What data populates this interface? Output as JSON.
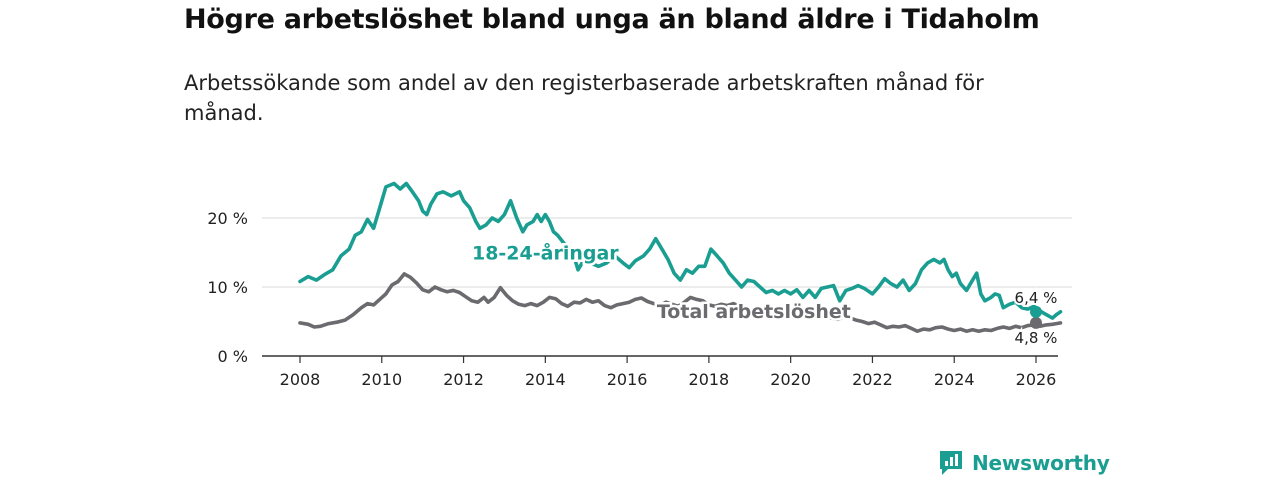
{
  "title": "Högre arbetslöshet bland unga än bland äldre i Tidaholm",
  "subtitle": "Arbetssökande som andel av den registerbaserade arbetskraften månad för månad.",
  "brand": {
    "name": "Newsworthy",
    "icon": "newsworthy-logo-icon",
    "color": "#1a9e92"
  },
  "chart_data": {
    "type": "line",
    "xlabel": "",
    "ylabel": "",
    "xlim": [
      2007.4,
      2026.6
    ],
    "ylim": [
      0,
      25
    ],
    "x_ticks": [
      {
        "value": 2008,
        "label": "2008"
      },
      {
        "value": 2010,
        "label": "2010"
      },
      {
        "value": 2012,
        "label": "2012"
      },
      {
        "value": 2014,
        "label": "2014"
      },
      {
        "value": 2016,
        "label": "2016"
      },
      {
        "value": 2018,
        "label": "2018"
      },
      {
        "value": 2020,
        "label": "2020"
      },
      {
        "value": 2022,
        "label": "2022"
      },
      {
        "value": 2024,
        "label": "2024"
      },
      {
        "value": 2026,
        "label": "2026"
      }
    ],
    "y_ticks": [
      {
        "value": 0,
        "label": "0 %"
      },
      {
        "value": 10,
        "label": "10 %"
      },
      {
        "value": 20,
        "label": "20 %"
      }
    ],
    "grid": true,
    "series": [
      {
        "name": "18-24-åringar",
        "color": "#1a9e92",
        "label_at": [
          2014.0,
          15.0
        ],
        "last_value_label": "6,4 %",
        "points": [
          [
            2008.0,
            10.8
          ],
          [
            2008.2,
            11.5
          ],
          [
            2008.4,
            11.0
          ],
          [
            2008.6,
            11.8
          ],
          [
            2008.8,
            12.5
          ],
          [
            2009.0,
            14.5
          ],
          [
            2009.2,
            15.5
          ],
          [
            2009.35,
            17.5
          ],
          [
            2009.5,
            18.0
          ],
          [
            2009.65,
            19.8
          ],
          [
            2009.8,
            18.5
          ],
          [
            2009.9,
            20.5
          ],
          [
            2010.0,
            22.5
          ],
          [
            2010.1,
            24.5
          ],
          [
            2010.3,
            25.0
          ],
          [
            2010.45,
            24.2
          ],
          [
            2010.6,
            25.0
          ],
          [
            2010.75,
            23.8
          ],
          [
            2010.9,
            22.5
          ],
          [
            2011.0,
            21.0
          ],
          [
            2011.1,
            20.5
          ],
          [
            2011.2,
            22.0
          ],
          [
            2011.35,
            23.5
          ],
          [
            2011.5,
            23.8
          ],
          [
            2011.7,
            23.2
          ],
          [
            2011.9,
            23.8
          ],
          [
            2012.0,
            22.5
          ],
          [
            2012.15,
            21.5
          ],
          [
            2012.3,
            19.5
          ],
          [
            2012.4,
            18.5
          ],
          [
            2012.55,
            19.0
          ],
          [
            2012.7,
            20.0
          ],
          [
            2012.85,
            19.5
          ],
          [
            2013.0,
            20.5
          ],
          [
            2013.15,
            22.5
          ],
          [
            2013.3,
            20.0
          ],
          [
            2013.45,
            18.0
          ],
          [
            2013.55,
            19.0
          ],
          [
            2013.7,
            19.5
          ],
          [
            2013.8,
            20.5
          ],
          [
            2013.9,
            19.5
          ],
          [
            2014.0,
            20.5
          ],
          [
            2014.1,
            19.5
          ],
          [
            2014.2,
            18.0
          ],
          [
            2014.3,
            17.5
          ],
          [
            2014.5,
            16.0
          ],
          [
            2014.65,
            15.5
          ],
          [
            2014.8,
            12.5
          ],
          [
            2014.95,
            14.0
          ],
          [
            2015.1,
            13.5
          ],
          [
            2015.3,
            13.0
          ],
          [
            2015.5,
            13.5
          ],
          [
            2015.7,
            14.5
          ],
          [
            2015.9,
            13.5
          ],
          [
            2016.05,
            12.8
          ],
          [
            2016.2,
            13.8
          ],
          [
            2016.4,
            14.5
          ],
          [
            2016.55,
            15.5
          ],
          [
            2016.7,
            17.0
          ],
          [
            2016.85,
            15.5
          ],
          [
            2017.0,
            14.0
          ],
          [
            2017.15,
            12.0
          ],
          [
            2017.3,
            11.0
          ],
          [
            2017.45,
            12.5
          ],
          [
            2017.6,
            12.0
          ],
          [
            2017.75,
            13.0
          ],
          [
            2017.9,
            13.0
          ],
          [
            2018.05,
            15.5
          ],
          [
            2018.2,
            14.5
          ],
          [
            2018.35,
            13.5
          ],
          [
            2018.5,
            12.0
          ],
          [
            2018.65,
            11.0
          ],
          [
            2018.8,
            10.0
          ],
          [
            2018.95,
            11.0
          ],
          [
            2019.1,
            10.8
          ],
          [
            2019.25,
            10.0
          ],
          [
            2019.4,
            9.2
          ],
          [
            2019.55,
            9.5
          ],
          [
            2019.7,
            9.0
          ],
          [
            2019.85,
            9.5
          ],
          [
            2020.0,
            9.0
          ],
          [
            2020.15,
            9.6
          ],
          [
            2020.3,
            8.5
          ],
          [
            2020.45,
            9.5
          ],
          [
            2020.6,
            8.5
          ],
          [
            2020.75,
            9.8
          ],
          [
            2020.9,
            10.0
          ],
          [
            2021.05,
            10.2
          ],
          [
            2021.2,
            8.0
          ],
          [
            2021.35,
            9.5
          ],
          [
            2021.5,
            9.8
          ],
          [
            2021.65,
            10.2
          ],
          [
            2021.8,
            9.8
          ],
          [
            2022.0,
            9.0
          ],
          [
            2022.15,
            10.0
          ],
          [
            2022.3,
            11.2
          ],
          [
            2022.45,
            10.5
          ],
          [
            2022.6,
            10.0
          ],
          [
            2022.75,
            11.0
          ],
          [
            2022.9,
            9.5
          ],
          [
            2023.05,
            10.5
          ],
          [
            2023.2,
            12.5
          ],
          [
            2023.35,
            13.5
          ],
          [
            2023.5,
            14.0
          ],
          [
            2023.65,
            13.5
          ],
          [
            2023.75,
            14.0
          ],
          [
            2023.85,
            12.5
          ],
          [
            2023.95,
            11.5
          ],
          [
            2024.05,
            12.0
          ],
          [
            2024.15,
            10.5
          ],
          [
            2024.3,
            9.5
          ],
          [
            2024.45,
            11.0
          ],
          [
            2024.55,
            12.0
          ],
          [
            2024.65,
            9.0
          ],
          [
            2024.75,
            8.0
          ],
          [
            2024.9,
            8.5
          ],
          [
            2025.0,
            9.0
          ],
          [
            2025.1,
            8.8
          ],
          [
            2025.2,
            7.0
          ],
          [
            2025.35,
            7.5
          ],
          [
            2025.5,
            7.8
          ],
          [
            2025.65,
            7.0
          ],
          [
            2025.8,
            6.8
          ],
          [
            2025.95,
            7.2
          ],
          [
            2026.1,
            6.5
          ],
          [
            2026.25,
            6.0
          ],
          [
            2026.4,
            5.5
          ],
          [
            2026.5,
            6.0
          ],
          [
            2026.6,
            6.4
          ]
        ]
      },
      {
        "name": "Total arbetslöshet",
        "color": "#6b6b6f",
        "label_at": [
          2019.1,
          6.5
        ],
        "last_value_label": "4,8 %",
        "points": [
          [
            2008.0,
            4.8
          ],
          [
            2008.2,
            4.6
          ],
          [
            2008.35,
            4.2
          ],
          [
            2008.5,
            4.3
          ],
          [
            2008.7,
            4.7
          ],
          [
            2008.9,
            4.9
          ],
          [
            2009.1,
            5.2
          ],
          [
            2009.3,
            6.0
          ],
          [
            2009.5,
            7.0
          ],
          [
            2009.65,
            7.6
          ],
          [
            2009.8,
            7.4
          ],
          [
            2009.95,
            8.2
          ],
          [
            2010.1,
            9.0
          ],
          [
            2010.25,
            10.3
          ],
          [
            2010.4,
            10.8
          ],
          [
            2010.55,
            11.9
          ],
          [
            2010.7,
            11.4
          ],
          [
            2010.85,
            10.6
          ],
          [
            2011.0,
            9.6
          ],
          [
            2011.15,
            9.3
          ],
          [
            2011.3,
            10.0
          ],
          [
            2011.45,
            9.6
          ],
          [
            2011.6,
            9.3
          ],
          [
            2011.75,
            9.5
          ],
          [
            2011.9,
            9.2
          ],
          [
            2012.05,
            8.6
          ],
          [
            2012.2,
            8.0
          ],
          [
            2012.35,
            7.8
          ],
          [
            2012.5,
            8.5
          ],
          [
            2012.6,
            7.8
          ],
          [
            2012.75,
            8.5
          ],
          [
            2012.9,
            9.9
          ],
          [
            2013.05,
            8.8
          ],
          [
            2013.2,
            8.0
          ],
          [
            2013.35,
            7.5
          ],
          [
            2013.5,
            7.3
          ],
          [
            2013.65,
            7.6
          ],
          [
            2013.8,
            7.3
          ],
          [
            2013.95,
            7.8
          ],
          [
            2014.1,
            8.5
          ],
          [
            2014.25,
            8.3
          ],
          [
            2014.4,
            7.6
          ],
          [
            2014.55,
            7.2
          ],
          [
            2014.7,
            7.8
          ],
          [
            2014.85,
            7.7
          ],
          [
            2015.0,
            8.2
          ],
          [
            2015.15,
            7.8
          ],
          [
            2015.3,
            8.0
          ],
          [
            2015.45,
            7.3
          ],
          [
            2015.6,
            7.0
          ],
          [
            2015.75,
            7.4
          ],
          [
            2015.9,
            7.6
          ],
          [
            2016.05,
            7.8
          ],
          [
            2016.2,
            8.2
          ],
          [
            2016.35,
            8.4
          ],
          [
            2016.5,
            7.9
          ],
          [
            2016.65,
            7.6
          ],
          [
            2016.8,
            7.3
          ],
          [
            2016.95,
            7.8
          ],
          [
            2017.1,
            7.5
          ],
          [
            2017.25,
            7.2
          ],
          [
            2017.4,
            7.8
          ],
          [
            2017.55,
            8.5
          ],
          [
            2017.7,
            8.2
          ],
          [
            2017.85,
            8.0
          ],
          [
            2018.0,
            7.4
          ],
          [
            2018.15,
            7.2
          ],
          [
            2018.3,
            7.5
          ],
          [
            2018.45,
            7.3
          ],
          [
            2018.6,
            7.6
          ],
          [
            2018.75,
            7.2
          ],
          [
            2018.9,
            6.9
          ],
          [
            2019.05,
            6.6
          ],
          [
            2019.2,
            6.6
          ],
          [
            2019.35,
            6.3
          ],
          [
            2019.5,
            6.2
          ],
          [
            2019.65,
            6.0
          ],
          [
            2019.8,
            6.3
          ],
          [
            2019.95,
            6.0
          ],
          [
            2020.1,
            6.2
          ],
          [
            2020.25,
            5.8
          ],
          [
            2020.4,
            6.0
          ],
          [
            2020.55,
            5.8
          ],
          [
            2020.7,
            5.4
          ],
          [
            2020.85,
            5.7
          ],
          [
            2021.0,
            5.5
          ],
          [
            2021.15,
            5.3
          ],
          [
            2021.3,
            5.7
          ],
          [
            2021.45,
            5.5
          ],
          [
            2021.6,
            5.2
          ],
          [
            2021.75,
            5.0
          ],
          [
            2021.9,
            4.7
          ],
          [
            2022.05,
            4.9
          ],
          [
            2022.2,
            4.5
          ],
          [
            2022.35,
            4.1
          ],
          [
            2022.5,
            4.3
          ],
          [
            2022.65,
            4.2
          ],
          [
            2022.8,
            4.4
          ],
          [
            2022.95,
            4.0
          ],
          [
            2023.1,
            3.6
          ],
          [
            2023.25,
            3.9
          ],
          [
            2023.4,
            3.8
          ],
          [
            2023.55,
            4.1
          ],
          [
            2023.7,
            4.2
          ],
          [
            2023.85,
            3.9
          ],
          [
            2024.0,
            3.7
          ],
          [
            2024.15,
            3.9
          ],
          [
            2024.3,
            3.6
          ],
          [
            2024.45,
            3.8
          ],
          [
            2024.6,
            3.6
          ],
          [
            2024.75,
            3.8
          ],
          [
            2024.9,
            3.7
          ],
          [
            2025.05,
            4.0
          ],
          [
            2025.2,
            4.2
          ],
          [
            2025.35,
            4.0
          ],
          [
            2025.5,
            4.3
          ],
          [
            2025.65,
            4.1
          ],
          [
            2025.8,
            4.4
          ],
          [
            2025.95,
            4.5
          ],
          [
            2026.1,
            4.3
          ],
          [
            2026.25,
            4.5
          ],
          [
            2026.4,
            4.6
          ],
          [
            2026.5,
            4.7
          ],
          [
            2026.6,
            4.8
          ]
        ]
      }
    ]
  }
}
